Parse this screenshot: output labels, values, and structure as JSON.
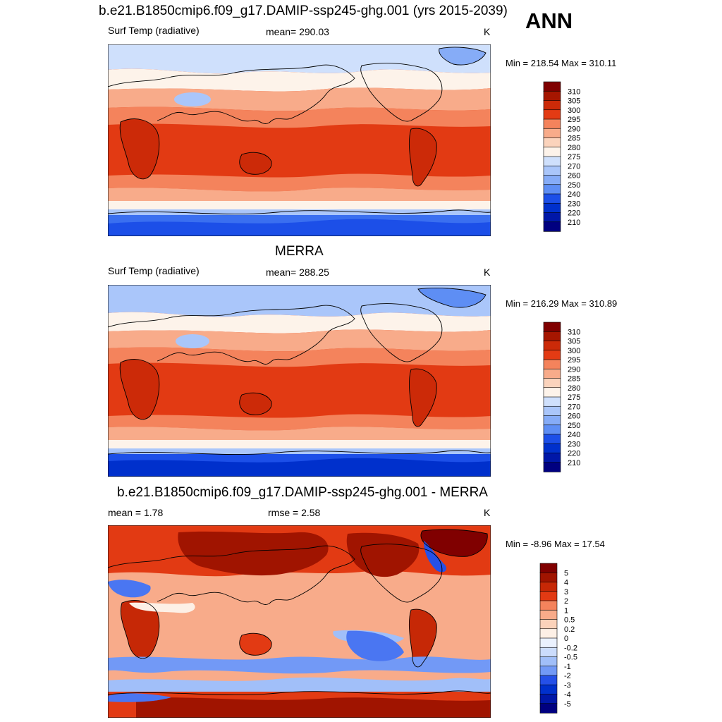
{
  "header": {
    "season": "ANN"
  },
  "colors": {
    "absolute_scale": [
      "#000080",
      "#0017a8",
      "#0030cc",
      "#1c4fe8",
      "#3a6ff0",
      "#5e8ef4",
      "#86acf7",
      "#aac6fa",
      "#cfe0fc",
      "#fdf3ea",
      "#fbd3bc",
      "#f8ab8a",
      "#f4835c",
      "#ee5a2f",
      "#e33b14",
      "#cc2a08",
      "#a61600",
      "#800000"
    ],
    "difference_scale": [
      "#000080",
      "#0017a8",
      "#0030cc",
      "#2550e8",
      "#4a76f2",
      "#7299f6",
      "#a1bff9",
      "#cbdcfc",
      "#eaf1fe",
      "#fdf0e6",
      "#fbd2ba",
      "#f8ab8a",
      "#f4835c",
      "#ee5a2f",
      "#e23a13",
      "#c62806",
      "#a01400",
      "#800000"
    ],
    "coastline": "#000000"
  },
  "chart_data": [
    {
      "type": "heatmap",
      "title": "b.e21.B1850cmip6.f09_g17.DAMIP-ssp245-ghg.001 (yrs 2015-2039)",
      "variable": "Surf Temp (radiative)",
      "mean_text": "mean= 290.03",
      "units": "K",
      "min": 218.54,
      "max": 310.11,
      "minmax_text": "Min = 218.54 Max = 310.11",
      "colorbar": {
        "levels": [
          "210",
          "220",
          "230",
          "240",
          "250",
          "260",
          "270",
          "275",
          "280",
          "285",
          "290",
          "295",
          "300",
          "305",
          "310"
        ],
        "n_colors": 16
      }
    },
    {
      "type": "heatmap",
      "title": "MERRA",
      "variable": "Surf Temp (radiative)",
      "mean_text": "mean= 288.25",
      "units": "K",
      "min": 216.29,
      "max": 310.89,
      "minmax_text": "Min = 216.29 Max = 310.89",
      "colorbar": {
        "levels": [
          "210",
          "220",
          "230",
          "240",
          "250",
          "260",
          "270",
          "275",
          "280",
          "285",
          "290",
          "295",
          "300",
          "305",
          "310"
        ],
        "n_colors": 16
      }
    },
    {
      "type": "heatmap",
      "title": "b.e21.B1850cmip6.f09_g17.DAMIP-ssp245-ghg.001 - MERRA",
      "mean_text": "mean =   1.78",
      "rmse_text": "rmse =   2.58",
      "units": "K",
      "min": -8.96,
      "max": 17.54,
      "minmax_text": "Min =  -8.96 Max =  17.54",
      "colorbar": {
        "levels": [
          "-5",
          "-4",
          "-3",
          "-2",
          "-1",
          "-0.5",
          "-0.2",
          "0",
          "0.2",
          "0.5",
          "1",
          "2",
          "3",
          "4",
          "5"
        ],
        "n_colors": 16
      }
    }
  ]
}
